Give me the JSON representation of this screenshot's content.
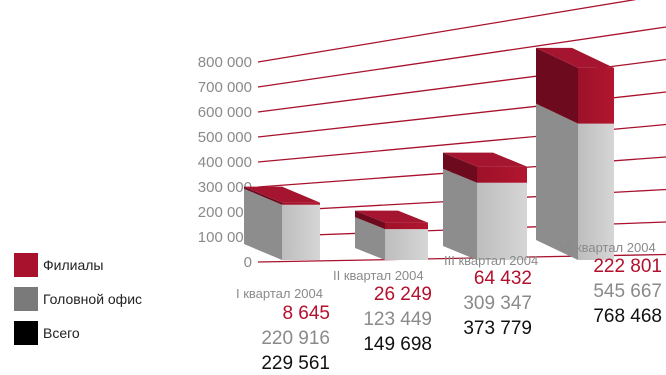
{
  "chart_data": {
    "type": "bar",
    "stacked": true,
    "three_d": true,
    "categories": [
      "I квартал 2004",
      "II квартал 2004",
      "III квартал 2004",
      "VI квартал 2004"
    ],
    "series": [
      {
        "name": "Головной офис",
        "values": [
          220916,
          123449,
          309347,
          545667
        ],
        "color": "#a9a9a9"
      },
      {
        "name": "Филиалы",
        "values": [
          8645,
          26249,
          64432,
          222801
        ],
        "color": "#a8122d"
      }
    ],
    "totals": {
      "name": "Всего",
      "values": [
        229561,
        149698,
        373779,
        768468
      ],
      "color": "#000000"
    },
    "data_labels": {
      "branches": [
        "8 645",
        "26 249",
        "64 432",
        "222 801"
      ],
      "head_office": [
        "220 916",
        "123 449",
        "309 347",
        "545 667"
      ],
      "totals": [
        "229 561",
        "149 698",
        "373 779",
        "768 468"
      ]
    },
    "y_ticks": [
      0,
      100000,
      200000,
      300000,
      400000,
      500000,
      600000,
      700000,
      800000
    ],
    "y_tick_labels": [
      "0",
      "100 000",
      "200 000",
      "300 000",
      "400 000",
      "500 000",
      "600 000",
      "700 000",
      "800 000"
    ],
    "ylim": [
      0,
      800000
    ],
    "grid": true,
    "gridline_color": "#a8122d",
    "legend_position": "bottom-left",
    "legend": [
      {
        "label": "Филиалы",
        "color": "#a8122d"
      },
      {
        "label": "Головной офис",
        "color": "#7a7a7a"
      },
      {
        "label": "Всего",
        "color": "#000000"
      }
    ]
  }
}
